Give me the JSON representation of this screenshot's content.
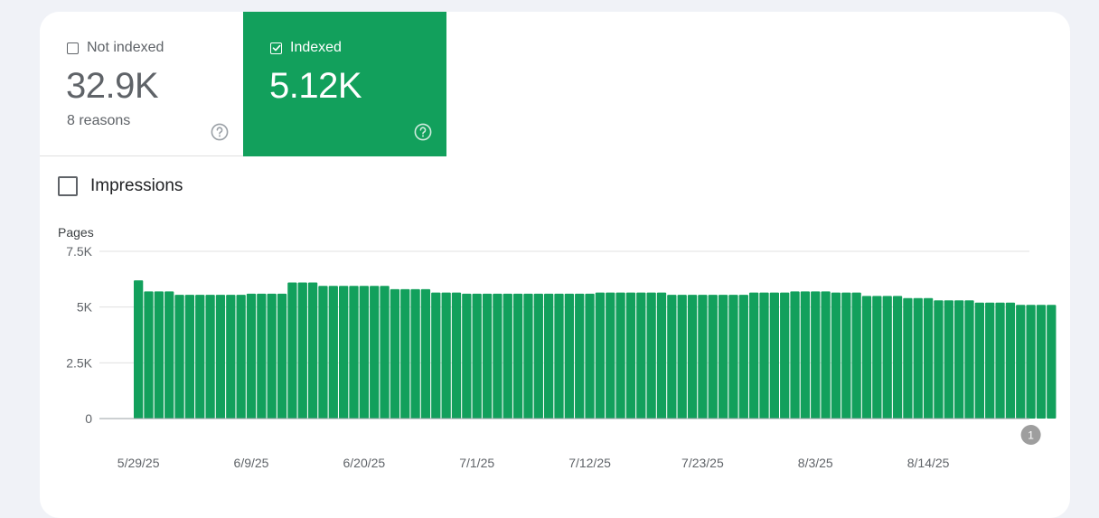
{
  "tiles": {
    "not_indexed": {
      "label": "Not indexed",
      "value": "32.9K",
      "sub": "8 reasons",
      "checked": false
    },
    "indexed": {
      "label": "Indexed",
      "value": "5.12K",
      "checked": true
    }
  },
  "impressions": {
    "label": "Impressions",
    "checked": false
  },
  "colors": {
    "accent": "#12a05c",
    "bar": "#12a05c",
    "grid": "#e0e0e0",
    "axis_text": "#5f6368"
  },
  "chart_data": {
    "type": "bar",
    "ylabel": "Pages",
    "ylim": [
      0,
      7500
    ],
    "yticks": [
      {
        "value": 0,
        "label": "0"
      },
      {
        "value": 2500,
        "label": "2.5K"
      },
      {
        "value": 5000,
        "label": "5K"
      },
      {
        "value": 7500,
        "label": "7.5K"
      }
    ],
    "start_date": "2025-05-29",
    "xtick_labels": [
      "5/29/25",
      "6/9/25",
      "6/20/25",
      "7/1/25",
      "7/12/25",
      "7/23/25",
      "8/3/25",
      "8/14/25"
    ],
    "values": [
      6200,
      5700,
      5700,
      5700,
      5550,
      5550,
      5550,
      5550,
      5550,
      5550,
      5550,
      5600,
      5600,
      5600,
      5600,
      6100,
      6100,
      6100,
      5950,
      5950,
      5950,
      5950,
      5950,
      5950,
      5950,
      5800,
      5800,
      5800,
      5800,
      5650,
      5650,
      5650,
      5600,
      5600,
      5600,
      5600,
      5600,
      5600,
      5600,
      5600,
      5600,
      5600,
      5600,
      5600,
      5600,
      5650,
      5650,
      5650,
      5650,
      5650,
      5650,
      5650,
      5550,
      5550,
      5550,
      5550,
      5550,
      5550,
      5550,
      5550,
      5650,
      5650,
      5650,
      5650,
      5700,
      5700,
      5700,
      5700,
      5650,
      5650,
      5650,
      5500,
      5500,
      5500,
      5500,
      5400,
      5400,
      5400,
      5300,
      5300,
      5300,
      5300,
      5200,
      5200,
      5200,
      5200,
      5100,
      5100,
      5100,
      5100
    ],
    "annotation": {
      "label": "1",
      "date": "2025-08-24"
    },
    "grid": true,
    "legend": "none"
  }
}
